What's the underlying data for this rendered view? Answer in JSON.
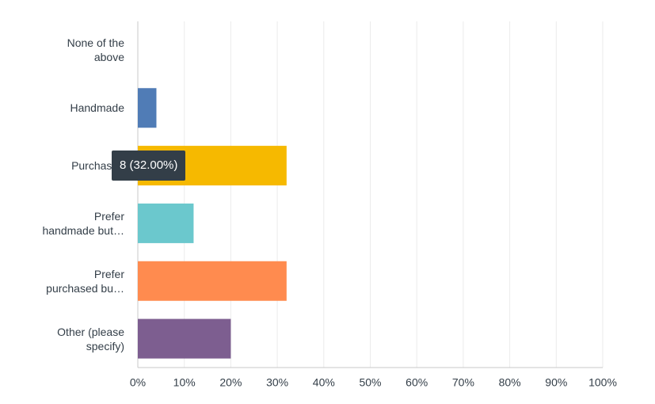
{
  "chart_data": {
    "type": "hbar",
    "categories": [
      "None of the above",
      "Handmade",
      "Purchased",
      "Prefer handmade but…",
      "Prefer purchased bu…",
      "Other (please specify)"
    ],
    "values": [
      0,
      4,
      32,
      12,
      32,
      20
    ],
    "colors": [
      "#00bf6f",
      "#507cb6",
      "#f6b900",
      "#6bc8cd",
      "#ff8b4f",
      "#7d5e90"
    ],
    "xlim": [
      0,
      100
    ],
    "xticks": [
      {
        "value": 0,
        "label": "0%"
      },
      {
        "value": 10,
        "label": "10%"
      },
      {
        "value": 20,
        "label": "20%"
      },
      {
        "value": 30,
        "label": "30%"
      },
      {
        "value": 40,
        "label": "40%"
      },
      {
        "value": 50,
        "label": "50%"
      },
      {
        "value": 60,
        "label": "60%"
      },
      {
        "value": 70,
        "label": "70%"
      },
      {
        "value": 80,
        "label": "80%"
      },
      {
        "value": 90,
        "label": "90%"
      },
      {
        "value": 100,
        "label": "100%"
      }
    ],
    "grid": true,
    "tooltip": {
      "category_index": 2,
      "text": "8 (32.00%)"
    }
  }
}
